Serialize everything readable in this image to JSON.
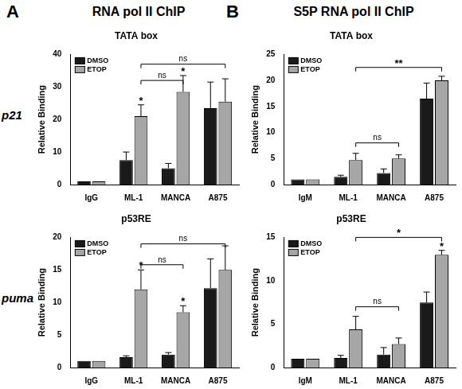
{
  "panels": [
    {
      "label": "A",
      "title": "RNA pol II ChIP"
    },
    {
      "label": "B",
      "title": "S5P RNA pol II ChIP"
    }
  ],
  "rows": [
    "p21",
    "puma"
  ],
  "chart_data": [
    {
      "type": "bar",
      "title": "TATA box",
      "y_label": "Relative Binding",
      "categories": [
        "IgG",
        "ML-1",
        "MANCA",
        "A875"
      ],
      "series": [
        {
          "name": "DMSO",
          "color": "#1a1a1a",
          "values": [
            1,
            7.5,
            5,
            23.5
          ],
          "errors": [
            0,
            2.5,
            1.5,
            8
          ]
        },
        {
          "name": "ETOP",
          "color": "#a6a6a6",
          "values": [
            1,
            21,
            28.5,
            25.5
          ],
          "errors": [
            0,
            3.5,
            5,
            7
          ]
        }
      ],
      "ylim": [
        0,
        40
      ],
      "yticks": [
        0,
        10,
        20,
        30,
        40
      ],
      "grid": false,
      "legend": "top-left",
      "annotations": [
        {
          "kind": "star",
          "category": "ML-1",
          "series": "ETOP",
          "text": "*"
        },
        {
          "kind": "star",
          "category": "MANCA",
          "series": "ETOP",
          "text": "*"
        },
        {
          "kind": "bracket",
          "from": "ML-1",
          "to": "MANCA",
          "series": "ETOP",
          "y": 32,
          "text": "ns"
        },
        {
          "kind": "bracket",
          "from": "ML-1",
          "to": "A875",
          "series": "ETOP",
          "y": 37,
          "text": "ns"
        }
      ]
    },
    {
      "type": "bar",
      "title": "TATA box",
      "y_label": "Relative Binding",
      "categories": [
        "IgM",
        "ML-1",
        "MANCA",
        "A875"
      ],
      "series": [
        {
          "name": "DMSO",
          "color": "#1a1a1a",
          "values": [
            1,
            1.5,
            2.2,
            16.5
          ],
          "errors": [
            0,
            0.3,
            0.8,
            3
          ]
        },
        {
          "name": "ETOP",
          "color": "#a6a6a6",
          "values": [
            1,
            4.7,
            5,
            20
          ],
          "errors": [
            0,
            1.3,
            0.7,
            0.8
          ]
        }
      ],
      "ylim": [
        0,
        25
      ],
      "yticks": [
        0,
        5,
        10,
        15,
        20,
        25
      ],
      "grid": false,
      "legend": "top-left",
      "annotations": [
        {
          "kind": "bracket",
          "from": "ML-1",
          "to": "MANCA",
          "series": "ETOP",
          "y": 8,
          "text": "ns"
        },
        {
          "kind": "bracket",
          "from": "ML-1",
          "to": "A875",
          "series": "ETOP",
          "y": 22.5,
          "text": "**"
        }
      ]
    },
    {
      "type": "bar",
      "title": "p53RE",
      "y_label": "Relative Binding",
      "categories": [
        "IgG",
        "ML-1",
        "MANCA",
        "A875"
      ],
      "series": [
        {
          "name": "DMSO",
          "color": "#1a1a1a",
          "values": [
            1,
            1.6,
            2,
            12.2
          ],
          "errors": [
            0,
            0.2,
            0.3,
            4.5
          ]
        },
        {
          "name": "ETOP",
          "color": "#a6a6a6",
          "values": [
            1,
            12,
            8.5,
            15
          ],
          "errors": [
            0,
            3,
            1,
            3.7
          ]
        }
      ],
      "ylim": [
        0,
        20
      ],
      "yticks": [
        0,
        5,
        10,
        15,
        20
      ],
      "grid": false,
      "legend": "top-left",
      "annotations": [
        {
          "kind": "star",
          "category": "ML-1",
          "series": "ETOP",
          "text": "*"
        },
        {
          "kind": "star",
          "category": "MANCA",
          "series": "ETOP",
          "text": "*"
        },
        {
          "kind": "bracket",
          "from": "ML-1",
          "to": "MANCA",
          "series": "ETOP",
          "y": 15.8,
          "text": "ns"
        },
        {
          "kind": "bracket",
          "from": "ML-1",
          "to": "A875",
          "series": "ETOP",
          "y": 19,
          "text": "ns"
        }
      ]
    },
    {
      "type": "bar",
      "title": "p53RE",
      "y_label": "Relative Binding",
      "categories": [
        "IgM",
        "ML-1",
        "MANCA",
        "A875"
      ],
      "series": [
        {
          "name": "DMSO",
          "color": "#1a1a1a",
          "values": [
            1,
            1.1,
            1.5,
            7.5
          ],
          "errors": [
            0,
            0.3,
            0.8,
            1.2
          ]
        },
        {
          "name": "ETOP",
          "color": "#a6a6a6",
          "values": [
            1,
            4.4,
            2.7,
            13
          ],
          "errors": [
            0,
            1.5,
            0.7,
            0.5
          ]
        }
      ],
      "ylim": [
        0,
        15
      ],
      "yticks": [
        0,
        5,
        10,
        15
      ],
      "grid": false,
      "legend": "top-left",
      "annotations": [
        {
          "kind": "star",
          "category": "A875",
          "series": "ETOP",
          "text": "*"
        },
        {
          "kind": "bracket",
          "from": "ML-1",
          "to": "MANCA",
          "series": "ETOP",
          "y": 7,
          "text": "ns"
        },
        {
          "kind": "bracket",
          "from": "ML-1",
          "to": "A875",
          "series": "ETOP",
          "y": 15,
          "text": "*"
        }
      ]
    }
  ]
}
